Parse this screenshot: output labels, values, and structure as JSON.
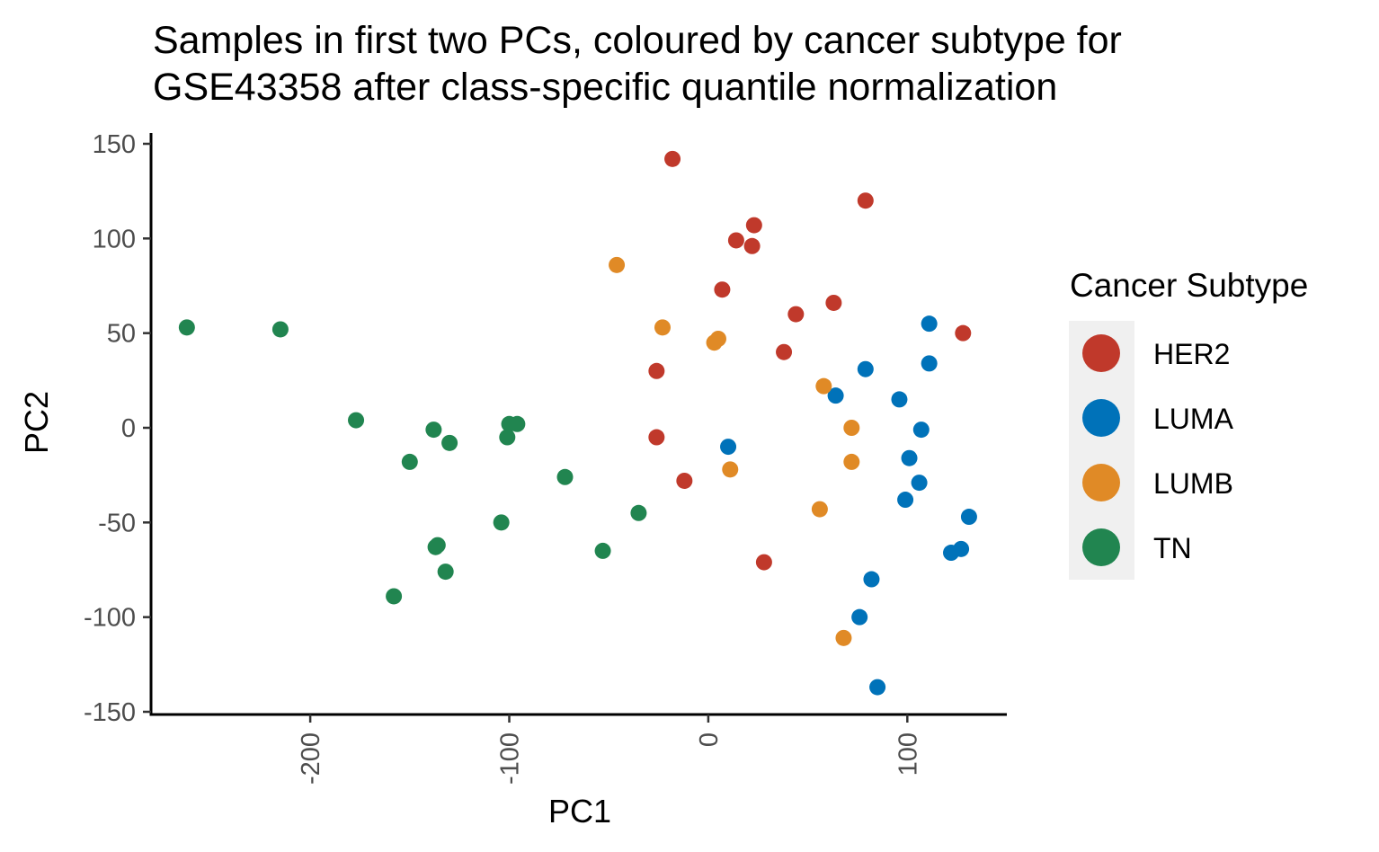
{
  "chart_data": {
    "type": "scatter",
    "title_lines": [
      "Samples in first two PCs, coloured by cancer subtype for",
      "GSE43358 after class-specific quantile normalization"
    ],
    "xlabel": "PC1",
    "ylabel": "PC2",
    "xlim": [
      -280,
      150
    ],
    "ylim": [
      -150,
      150
    ],
    "x_ticks": [
      -200,
      -100,
      0,
      100
    ],
    "x_tick_labels": [
      "-200",
      "-100",
      "0",
      "100"
    ],
    "y_ticks": [
      150,
      100,
      50,
      0,
      -50,
      -100,
      -150
    ],
    "y_tick_labels": [
      "150",
      "100",
      "50",
      "0",
      "-50",
      "-100",
      "-150"
    ],
    "grid": false,
    "legend": {
      "title": "Cancer Subtype",
      "position": "right",
      "entries": [
        "HER2",
        "LUMA",
        "LUMB",
        "TN"
      ]
    },
    "series": [
      {
        "name": "HER2",
        "color": "#c0392b",
        "points": [
          {
            "x": -18,
            "y": 142
          },
          {
            "x": 79,
            "y": 120
          },
          {
            "x": 23,
            "y": 107
          },
          {
            "x": 14,
            "y": 99
          },
          {
            "x": 22,
            "y": 96
          },
          {
            "x": 7,
            "y": 73
          },
          {
            "x": 44,
            "y": 60
          },
          {
            "x": 63,
            "y": 66
          },
          {
            "x": 38,
            "y": 40
          },
          {
            "x": 128,
            "y": 50
          },
          {
            "x": -26,
            "y": 30
          },
          {
            "x": -26,
            "y": -5
          },
          {
            "x": -12,
            "y": -28
          },
          {
            "x": 28,
            "y": -71
          }
        ]
      },
      {
        "name": "LUMA",
        "color": "#0072b9",
        "points": [
          {
            "x": 111,
            "y": 55
          },
          {
            "x": 111,
            "y": 34
          },
          {
            "x": 79,
            "y": 31
          },
          {
            "x": 64,
            "y": 17
          },
          {
            "x": 96,
            "y": 15
          },
          {
            "x": 107,
            "y": -1
          },
          {
            "x": 101,
            "y": -16
          },
          {
            "x": 10,
            "y": -10
          },
          {
            "x": 106,
            "y": -29
          },
          {
            "x": 99,
            "y": -38
          },
          {
            "x": 131,
            "y": -47
          },
          {
            "x": 127,
            "y": -64
          },
          {
            "x": 122,
            "y": -66
          },
          {
            "x": 82,
            "y": -80
          },
          {
            "x": 76,
            "y": -100
          },
          {
            "x": 85,
            "y": -137
          }
        ]
      },
      {
        "name": "LUMB",
        "color": "#e08a26",
        "points": [
          {
            "x": -46,
            "y": 86
          },
          {
            "x": -23,
            "y": 53
          },
          {
            "x": 5,
            "y": 47
          },
          {
            "x": 3,
            "y": 45
          },
          {
            "x": 58,
            "y": 22
          },
          {
            "x": 72,
            "y": 0
          },
          {
            "x": 72,
            "y": -18
          },
          {
            "x": 11,
            "y": -22
          },
          {
            "x": 56,
            "y": -43
          },
          {
            "x": 68,
            "y": -111
          }
        ]
      },
      {
        "name": "TN",
        "color": "#218550",
        "points": [
          {
            "x": -262,
            "y": 53
          },
          {
            "x": -215,
            "y": 52
          },
          {
            "x": -177,
            "y": 4
          },
          {
            "x": -138,
            "y": -1
          },
          {
            "x": -130,
            "y": -8
          },
          {
            "x": -150,
            "y": -18
          },
          {
            "x": -100,
            "y": 2
          },
          {
            "x": -96,
            "y": 2
          },
          {
            "x": -101,
            "y": -5
          },
          {
            "x": -72,
            "y": -26
          },
          {
            "x": -35,
            "y": -45
          },
          {
            "x": -104,
            "y": -50
          },
          {
            "x": -136,
            "y": -62
          },
          {
            "x": -137,
            "y": -63
          },
          {
            "x": -53,
            "y": -65
          },
          {
            "x": -132,
            "y": -76
          },
          {
            "x": -158,
            "y": -89
          }
        ]
      }
    ]
  }
}
